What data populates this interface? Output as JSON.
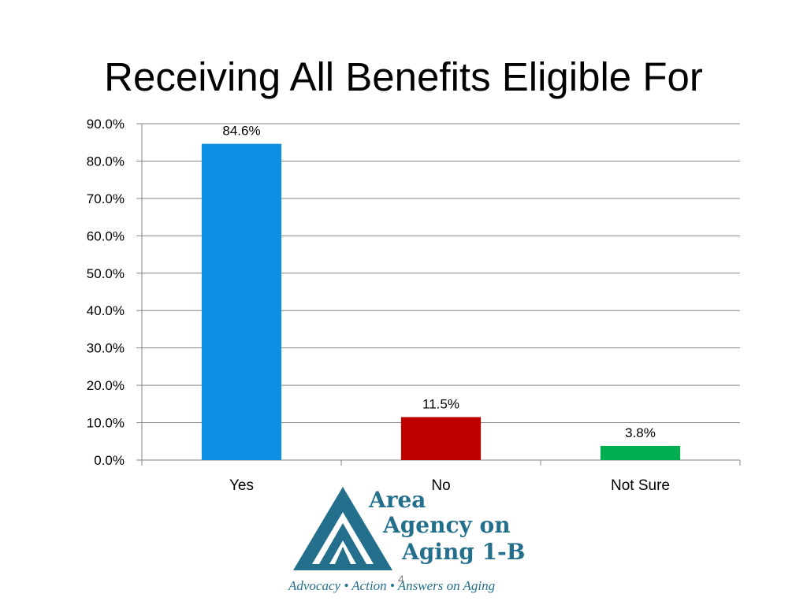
{
  "slide": {
    "title": "Receiving All Benefits Eligible For",
    "page_number": "4"
  },
  "chart_data": {
    "type": "bar",
    "title": "",
    "xlabel": "",
    "ylabel": "",
    "categories": [
      "Yes",
      "No",
      "Not Sure"
    ],
    "values": [
      84.6,
      11.5,
      3.8
    ],
    "value_labels": [
      "84.6%",
      "11.5%",
      "3.8%"
    ],
    "bar_colors": [
      "#0b8fe3",
      "#c00000",
      "#00b050"
    ],
    "ylim": [
      0,
      90
    ],
    "yticks": [
      0,
      10,
      20,
      30,
      40,
      50,
      60,
      70,
      80,
      90
    ],
    "ytick_labels": [
      "0.0%",
      "10.0%",
      "20.0%",
      "30.0%",
      "40.0%",
      "50.0%",
      "60.0%",
      "70.0%",
      "80.0%",
      "90.0%"
    ],
    "grid": true,
    "legend": "none"
  },
  "logo": {
    "line1": "Area",
    "line2": "Agency on",
    "line3": "Aging 1-B",
    "tagline": "Advocacy • Action • Answers on Aging",
    "color": "#236f8c"
  }
}
